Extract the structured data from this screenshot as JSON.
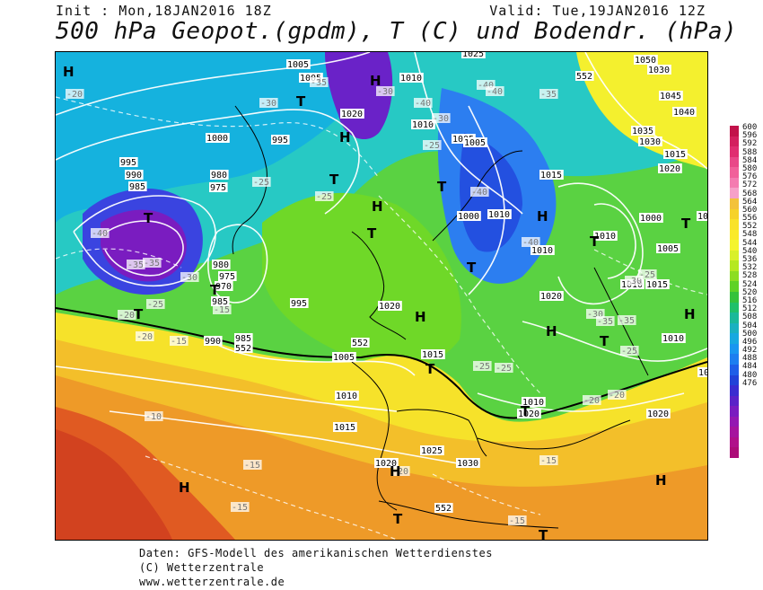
{
  "header": {
    "init": "Init : Mon,18JAN2016 18Z",
    "valid": "Valid: Tue,19JAN2016 12Z",
    "title": "500 hPa Geopot.(gpdm), T (C) und Bodendr. (hPa)"
  },
  "map": {
    "pressure_labels": [
      "1005",
      "1005",
      "1010",
      "1025",
      "1050",
      "1030",
      "1045",
      "1040",
      "1035",
      "1030",
      "1015",
      "1020",
      "1020",
      "1010",
      "1005",
      "1000",
      "995",
      "995",
      "990",
      "985",
      "980",
      "975",
      "980",
      "975",
      "970",
      "985",
      "990",
      "985",
      "995",
      "1020",
      "1010",
      "1005",
      "1015",
      "1020",
      "1010",
      "1005",
      "1000",
      "1010",
      "1010",
      "1015",
      "1020",
      "1010",
      "1015",
      "1010",
      "1000",
      "1005",
      "1015",
      "1010",
      "1020",
      "1020",
      "1015",
      "1020",
      "1025",
      "1030",
      "552",
      "552",
      "552",
      "552"
    ],
    "temperature_labels": [
      "-20",
      "-30",
      "-35",
      "-40",
      "-40",
      "-40",
      "-35",
      "-30",
      "-25",
      "-30",
      "-25",
      "-25",
      "-40",
      "-35",
      "-35",
      "-30",
      "-25",
      "-20",
      "-20",
      "-15",
      "-15",
      "-10",
      "-15",
      "-15",
      "-25",
      "-20",
      "-25",
      "-30",
      "-35",
      "-30",
      "-25",
      "-35",
      "-20",
      "-25",
      "-15",
      "-40",
      "-40",
      "-15",
      "-20"
    ],
    "high_symbol": "H",
    "low_symbol": "T"
  },
  "colorbar": {
    "labels": [
      "600",
      "596",
      "592",
      "588",
      "584",
      "580",
      "576",
      "572",
      "568",
      "564",
      "560",
      "556",
      "552",
      "548",
      "544",
      "540",
      "536",
      "532",
      "528",
      "524",
      "520",
      "516",
      "512",
      "508",
      "504",
      "500",
      "496",
      "492",
      "488",
      "484",
      "480",
      "476"
    ],
    "colors": [
      "#c2124a",
      "#d3205e",
      "#e02e70",
      "#e94888",
      "#f1609a",
      "#f47bb0",
      "#f6a0c8",
      "#f3c23a",
      "#f6d22a",
      "#f9e22a",
      "#faea2a",
      "#f4f42e",
      "#d9f02a",
      "#b5e821",
      "#8cdd22",
      "#5fd226",
      "#35c23b",
      "#20c06a",
      "#1ab89a",
      "#1ab0c0",
      "#17a8e0",
      "#1996f0",
      "#1d7ef0",
      "#1f5ee8",
      "#2242d8",
      "#3a2cd0",
      "#5a22c8",
      "#7a1cc0",
      "#9418b2",
      "#a6149e",
      "#b0108a",
      "#ac0c78"
    ]
  },
  "footer": {
    "line1": "Daten: GFS-Modell des amerikanischen Wetterdienstes",
    "line2": "(C) Wetterzentrale",
    "line3": "www.wetterzentrale.de"
  }
}
